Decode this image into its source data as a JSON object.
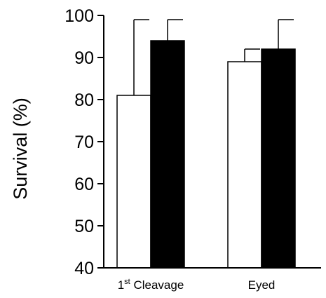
{
  "chart_data": {
    "type": "bar",
    "ylabel": "Survival (%)",
    "ylim": [
      40,
      100
    ],
    "yticks": [
      "40",
      "50",
      "60",
      "70",
      "80",
      "90",
      "100"
    ],
    "categories": [
      {
        "main": "1",
        "sup": "st",
        "rest": " Cleavage"
      },
      {
        "main": "Eyed",
        "sup": "",
        "rest": ""
      }
    ],
    "series": [
      {
        "fill": "#ffffff",
        "values": [
          81,
          89
        ],
        "error_upper": [
          99,
          92
        ]
      },
      {
        "fill": "#000000",
        "values": [
          94,
          92
        ],
        "error_upper": [
          99,
          99
        ]
      }
    ],
    "grid": false,
    "legend": "none"
  }
}
